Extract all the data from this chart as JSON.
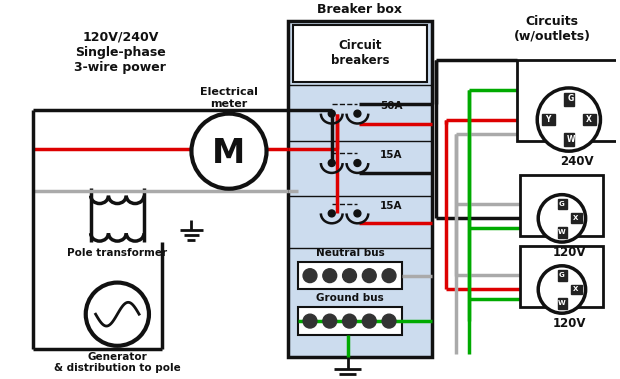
{
  "bg_color": "#ffffff",
  "wire_red": "#dd0000",
  "wire_black": "#111111",
  "wire_gray": "#aaaaaa",
  "wire_green": "#00aa00",
  "breaker_fill": "#ccdcee",
  "text_color": "#111111",
  "labels": {
    "top_left": "120V/240V\nSingle-phase\n3-wire power",
    "meter": "Electrical\nmeter",
    "breaker_box": "Breaker box",
    "circuit_breakers": "Circuit\nbreakers",
    "circuits": "Circuits\n(w/outlets)",
    "pole_transformer": "Pole transformer",
    "generator": "Generator\n& distribution to pole",
    "50A": "50A",
    "15A_1": "15A",
    "15A_2": "15A",
    "neutral_bus": "Neutral bus",
    "ground_bus": "Ground bus",
    "240V": "240V",
    "120V_1": "120V",
    "120V_2": "120V",
    "M": "M"
  }
}
